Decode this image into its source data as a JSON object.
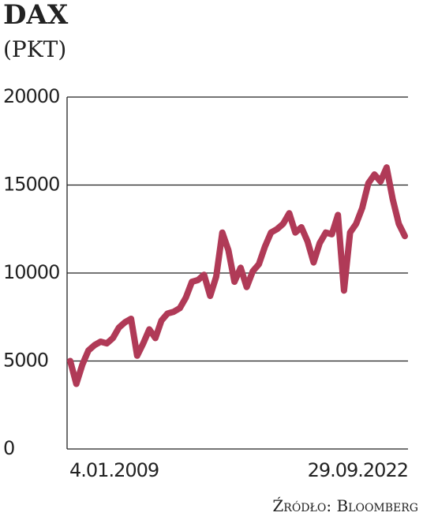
{
  "chart_data": {
    "type": "line",
    "title": "DAX",
    "subtitle": "(PKT)",
    "source": "Źródło: Bloomberg",
    "categories": [
      "4.01.2009",
      null,
      null,
      null,
      null,
      null,
      null,
      null,
      null,
      null,
      null,
      null,
      null,
      null,
      null,
      null,
      null,
      null,
      null,
      null,
      null,
      null,
      null,
      null,
      null,
      null,
      null,
      null,
      null,
      null,
      null,
      null,
      null,
      null,
      null,
      null,
      null,
      null,
      null,
      null,
      null,
      null,
      null,
      null,
      null,
      null,
      null,
      null,
      null,
      null,
      null,
      null,
      null,
      null,
      null,
      "29.09.2022"
    ],
    "series": [
      {
        "name": "DAX",
        "color": "#b03a57",
        "values": [
          5000,
          3700,
          4800,
          5600,
          5900,
          6100,
          6000,
          6300,
          6900,
          7200,
          7400,
          5300,
          6000,
          6800,
          6300,
          7300,
          7700,
          7800,
          8000,
          8600,
          9500,
          9600,
          9900,
          8700,
          9800,
          12300,
          11300,
          9500,
          10300,
          9200,
          10100,
          10500,
          11500,
          12300,
          12500,
          12800,
          13400,
          12300,
          12600,
          11800,
          10600,
          11700,
          12300,
          12200,
          13300,
          9000,
          12300,
          12800,
          13700,
          15100,
          15600,
          15200,
          16000,
          14200,
          12800,
          12100
        ]
      }
    ],
    "ylim": [
      0,
      20000
    ],
    "yticks": [
      0,
      5000,
      10000,
      15000,
      20000
    ],
    "grid": true
  }
}
